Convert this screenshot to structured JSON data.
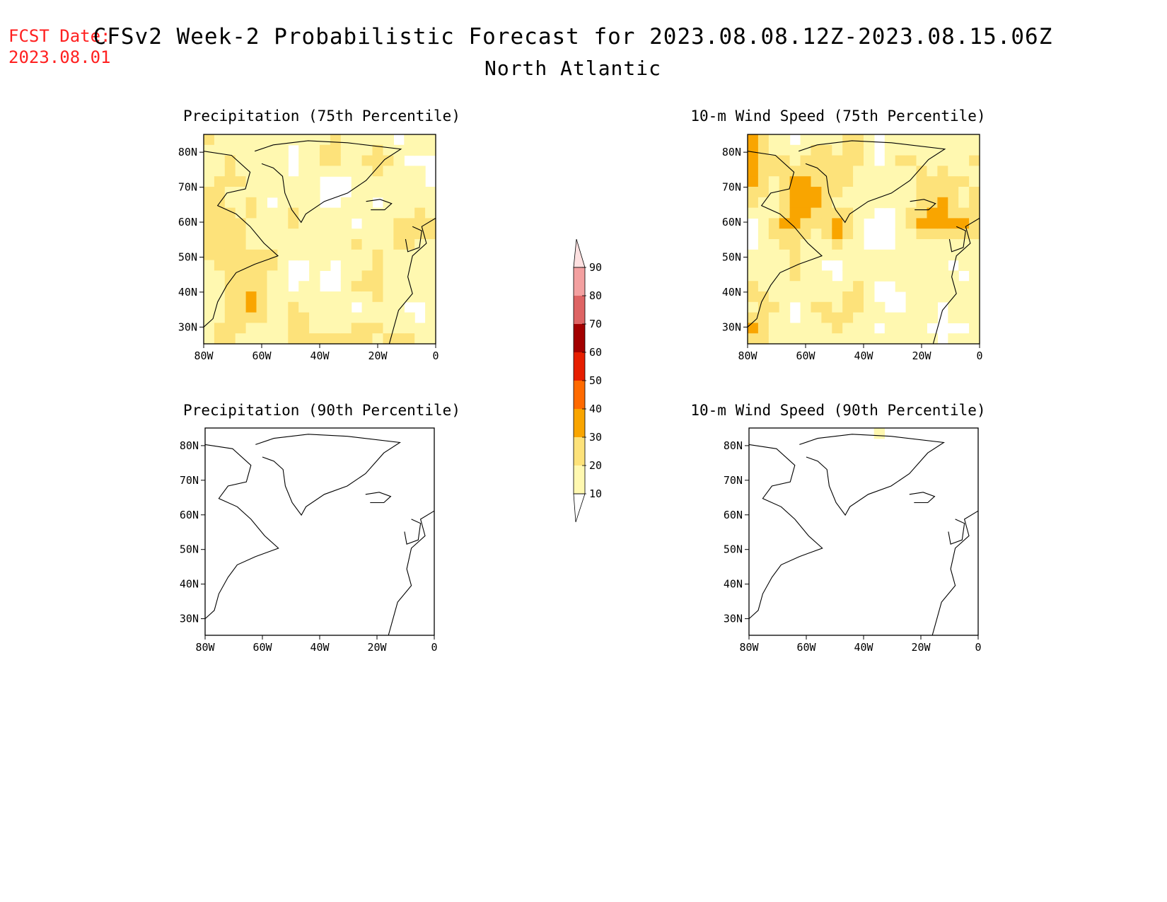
{
  "fcst": {
    "label": "FCST Date:",
    "date": "2023.08.01"
  },
  "title": "CFSv2 Week-2 Probabilistic Forecast for 2023.08.08.12Z-2023.08.15.06Z",
  "subtitle": "North Atlantic",
  "panels": [
    {
      "title": "Precipitation (75th Percentile)",
      "intensity": 0.78
    },
    {
      "title": "10-m Wind Speed (75th Percentile)",
      "intensity": 0.85
    },
    {
      "title": "Precipitation (90th Percentile)",
      "intensity": 0.22
    },
    {
      "title": "10-m Wind Speed (90th Percentile)",
      "intensity": 0.25
    }
  ],
  "lat_labels": [
    "80N",
    "70N",
    "60N",
    "50N",
    "40N",
    "30N"
  ],
  "lon_labels": [
    "80W",
    "60W",
    "40W",
    "20W",
    "0"
  ],
  "colorbar": {
    "levels": [
      "10",
      "20",
      "30",
      "40",
      "50",
      "60",
      "70",
      "80",
      "90"
    ],
    "colors": [
      "#fff8b0",
      "#fde27a",
      "#f9a500",
      "#ff6a00",
      "#e61e00",
      "#a30000",
      "#de6464",
      "#f3a0a0",
      "#fde0e0"
    ]
  },
  "colors": {
    "fcst": "#ff2020",
    "land_line": "#000000"
  }
}
